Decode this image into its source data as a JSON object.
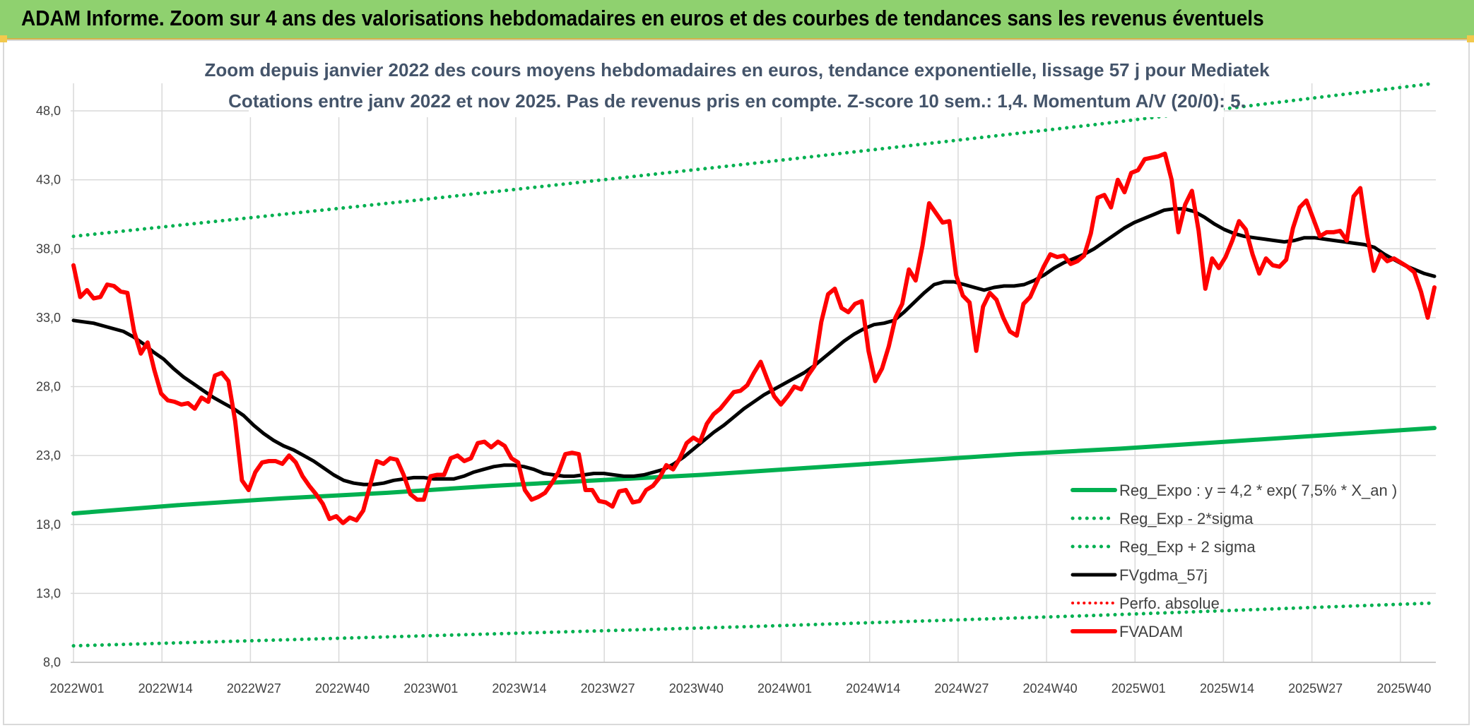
{
  "header": {
    "title": "ADAM Informe. Zoom sur 4 ans des valorisations hebdomadaires en euros et des courbes de tendances sans les revenus éventuels"
  },
  "colors": {
    "banner": "#8fd16f",
    "reg_expo": "#00b050",
    "fvgdma": "#000000",
    "perfo": "#ff0000",
    "fvadam": "#ff0000",
    "grid": "#d9d9d9"
  },
  "chart_data": {
    "type": "line",
    "title": "Zoom depuis janvier 2022 des cours moyens hebdomadaires en euros, tendance exponentielle, lissage 57 j pour Mediatek",
    "subtitle": "Cotations entre janv 2022 et nov 2025. Pas de revenus pris en compte. Z-score 10 sem.: 1,4. Momentum A/V (20/0): 5.",
    "ylim": [
      8,
      50
    ],
    "yticks": [
      "8,0",
      "13,0",
      "18,0",
      "23,0",
      "28,0",
      "33,0",
      "38,0",
      "43,0",
      "48,0"
    ],
    "ytick_values": [
      8,
      13,
      18,
      23,
      28,
      33,
      38,
      43,
      48
    ],
    "xtick_labels": [
      "2022W01",
      "2022W14",
      "2022W27",
      "2022W40",
      "2023W01",
      "2023W14",
      "2023W27",
      "2023W40",
      "2024W01",
      "2024W14",
      "2024W27",
      "2024W40",
      "2025W01",
      "2025W14",
      "2025W27",
      "2025W40"
    ],
    "grid": true,
    "legend_position": "bottom-right",
    "series": [
      {
        "name": "Reg_Expo : y = 4,2 * exp( 7,5% *  X_an )",
        "style": "solid-thick",
        "color": "#00b050",
        "values": [
          18.8,
          19.4,
          19.9,
          20.3,
          20.8,
          21.2,
          21.6,
          22.1,
          22.6,
          23.1,
          23.5,
          24.0,
          24.5,
          25.0
        ]
      },
      {
        "name": "Reg_Exp - 2*sigma",
        "style": "dotted",
        "color": "#00b050",
        "values": [
          9.2,
          9.9,
          10.6,
          11.4,
          12.3
        ]
      },
      {
        "name": "Reg_Exp + 2 sigma",
        "style": "dotted",
        "color": "#00b050",
        "values": [
          38.9,
          41.5,
          44.2,
          47.0,
          50.0
        ]
      },
      {
        "name": "FVgdma_57j",
        "style": "solid",
        "color": "#000000",
        "values": [
          32.8,
          32.7,
          32.6,
          32.4,
          32.2,
          32.0,
          31.6,
          31.1,
          30.5,
          30.0,
          29.3,
          28.7,
          28.2,
          27.7,
          27.2,
          26.8,
          26.4,
          25.9,
          25.2,
          24.6,
          24.1,
          23.7,
          23.4,
          23.0,
          22.6,
          22.1,
          21.6,
          21.2,
          21.0,
          20.9,
          20.9,
          21.0,
          21.2,
          21.3,
          21.4,
          21.4,
          21.3,
          21.3,
          21.3,
          21.5,
          21.8,
          22.0,
          22.2,
          22.3,
          22.3,
          22.2,
          22.0,
          21.7,
          21.6,
          21.5,
          21.5,
          21.6,
          21.7,
          21.7,
          21.6,
          21.5,
          21.5,
          21.6,
          21.8,
          22.0,
          22.4,
          22.9,
          23.5,
          24.1,
          24.7,
          25.2,
          25.8,
          26.4,
          26.9,
          27.4,
          27.8,
          28.2,
          28.6,
          29.0,
          29.5,
          30.1,
          30.7,
          31.3,
          31.8,
          32.2,
          32.5,
          32.6,
          32.8,
          33.4,
          34.1,
          34.8,
          35.4,
          35.6,
          35.6,
          35.4,
          35.2,
          35.0,
          35.2,
          35.3,
          35.3,
          35.4,
          35.7,
          36.1,
          36.6,
          37.0,
          37.3,
          37.6,
          38.0,
          38.5,
          39.0,
          39.5,
          39.9,
          40.2,
          40.5,
          40.8,
          40.9,
          40.9,
          40.7,
          40.3,
          39.8,
          39.4,
          39.1,
          38.9,
          38.8,
          38.7,
          38.6,
          38.5,
          38.6,
          38.8,
          38.8,
          38.7,
          38.6,
          38.5,
          38.4,
          38.3,
          38.1,
          37.6,
          37.2,
          36.8,
          36.5,
          36.2,
          36.0
        ]
      },
      {
        "name": "Perfo. absolue",
        "style": "dotted",
        "color": "#ff0000",
        "values": []
      },
      {
        "name": "FVADAM",
        "style": "solid-thick",
        "color": "#ff0000",
        "values": [
          36.8,
          34.5,
          35.0,
          34.4,
          34.5,
          35.4,
          35.3,
          34.9,
          34.8,
          32.0,
          30.4,
          31.2,
          29.2,
          27.5,
          27.0,
          26.9,
          26.7,
          26.8,
          26.4,
          27.2,
          26.9,
          28.8,
          29.0,
          28.4,
          25.5,
          21.2,
          20.5,
          21.8,
          22.5,
          22.6,
          22.6,
          22.4,
          23.0,
          22.5,
          21.5,
          20.8,
          20.2,
          19.5,
          18.4,
          18.6,
          18.1,
          18.5,
          18.3,
          19.0,
          20.8,
          22.6,
          22.4,
          22.8,
          22.7,
          21.6,
          20.2,
          19.8,
          19.8,
          21.5,
          21.6,
          21.6,
          22.8,
          23.0,
          22.6,
          22.8,
          23.9,
          24.0,
          23.6,
          24.0,
          23.7,
          22.8,
          22.5,
          20.5,
          19.8,
          20.0,
          20.3,
          21.0,
          21.8,
          23.1,
          23.2,
          23.1,
          20.5,
          20.5,
          19.7,
          19.6,
          19.3,
          20.4,
          20.5,
          19.6,
          19.7,
          20.5,
          20.8,
          21.4,
          22.3,
          22.0,
          22.8,
          23.9,
          24.3,
          24.0,
          25.3,
          26.0,
          26.4,
          27.0,
          27.6,
          27.7,
          28.1,
          29.0,
          29.8,
          28.5,
          27.3,
          26.7,
          27.3,
          28.0,
          27.8,
          28.8,
          29.5,
          32.7,
          34.7,
          35.1,
          33.7,
          33.4,
          34.0,
          34.2,
          30.6,
          28.4,
          29.3,
          30.9,
          33.0,
          34.0,
          36.5,
          35.7,
          38.2,
          41.3,
          40.6,
          39.9,
          40.0,
          36.1,
          34.6,
          34.1,
          30.6,
          33.8,
          34.8,
          34.3,
          33.0,
          32.0,
          31.7,
          34.0,
          34.5,
          35.6,
          36.7,
          37.6,
          37.4,
          37.5,
          36.9,
          37.1,
          37.5,
          39.1,
          41.7,
          41.9,
          41.0,
          43.0,
          42.1,
          43.5,
          43.7,
          44.5,
          44.6,
          44.7,
          44.9,
          43.0,
          39.2,
          41.2,
          42.2,
          39.3,
          35.1,
          37.3,
          36.6,
          37.4,
          38.6,
          40.0,
          39.4,
          37.6,
          36.2,
          37.3,
          36.8,
          36.7,
          37.2,
          39.5,
          41.0,
          41.5,
          40.2,
          38.9,
          39.2,
          39.2,
          39.3,
          38.6,
          41.8,
          42.4,
          39.0,
          36.4,
          37.6,
          37.1,
          37.3,
          37.0,
          36.7,
          36.3,
          34.9,
          33.0,
          35.2
        ]
      }
    ]
  }
}
